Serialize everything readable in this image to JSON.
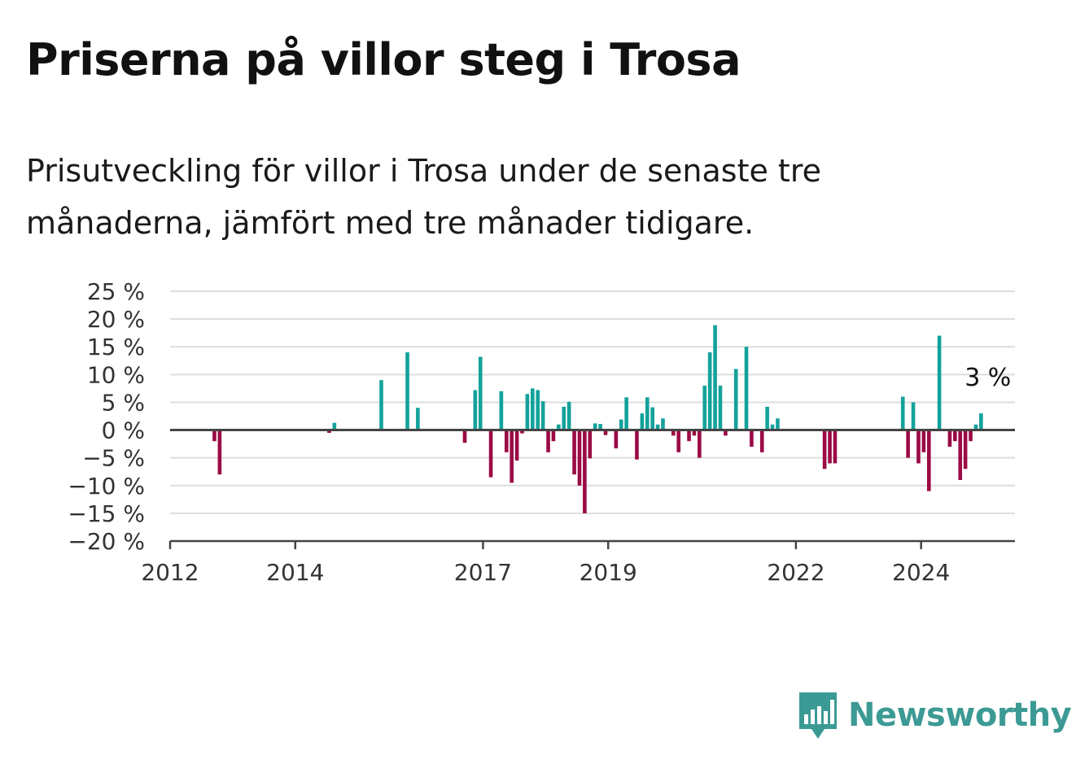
{
  "header": {
    "title": "Priserna på villor steg i Trosa",
    "subtitle": "Prisutveckling för villor i Trosa under de senaste tre månaderna, jämfört med tre månader tidigare."
  },
  "brand": {
    "name": "Newsworthy",
    "color": "#3c9a94",
    "icon": "bar-chart-speech-bubble-icon"
  },
  "chart_data": {
    "type": "bar",
    "title": "",
    "xlabel": "",
    "ylabel": "",
    "ylim": [
      -20,
      25
    ],
    "y_ticks": [
      25,
      20,
      15,
      10,
      5,
      0,
      -5,
      -10,
      -15,
      -20
    ],
    "y_tick_labels": [
      "25 %",
      "20 %",
      "15 %",
      "10 %",
      "5 %",
      "0 %",
      "−5 %",
      "−10 %",
      "−15 %",
      "−20 %"
    ],
    "x_range": [
      "2012-01",
      "2025-07"
    ],
    "x_ticks": [
      "2012-01",
      "2014-01",
      "2017-01",
      "2019-01",
      "2022-01",
      "2024-01"
    ],
    "x_tick_labels": [
      "2012",
      "2014",
      "2017",
      "2019",
      "2022",
      "2024"
    ],
    "grid": true,
    "colors": {
      "positive": "#13a29b",
      "negative": "#9b0a45",
      "zero_line": "#444444",
      "grid": "#dddddd"
    },
    "annotation": {
      "text": "3 %",
      "x": "2025-01",
      "y": 3
    },
    "series": [
      {
        "x": [
          "2012-09",
          "2012-10",
          "2014-07",
          "2014-08",
          "2015-05",
          "2015-10",
          "2015-12",
          "2016-09",
          "2016-11",
          "2016-12",
          "2017-02",
          "2017-04",
          "2017-05",
          "2017-06",
          "2017-07",
          "2017-08",
          "2017-09",
          "2017-10",
          "2017-11",
          "2017-12",
          "2018-01",
          "2018-02",
          "2018-03",
          "2018-04",
          "2018-05",
          "2018-06",
          "2018-07",
          "2018-08",
          "2018-09",
          "2018-10",
          "2018-11",
          "2018-12",
          "2019-02",
          "2019-03",
          "2019-04",
          "2019-06",
          "2019-07",
          "2019-08",
          "2019-09",
          "2019-10",
          "2019-11",
          "2020-01",
          "2020-02",
          "2020-04",
          "2020-05",
          "2020-06",
          "2020-07",
          "2020-08",
          "2020-09",
          "2020-10",
          "2020-11",
          "2021-01",
          "2021-03",
          "2021-04",
          "2021-06",
          "2021-07",
          "2021-08",
          "2021-09",
          "2021-10",
          "2022-06",
          "2022-07",
          "2022-08",
          "2023-09",
          "2023-10",
          "2023-11",
          "2023-12",
          "2024-01",
          "2024-02",
          "2024-04",
          "2024-06",
          "2024-07",
          "2024-08",
          "2024-09",
          "2024-10",
          "2024-11",
          "2024-12"
        ],
        "values": [
          -2,
          -8,
          -0.5,
          1.3,
          9,
          14,
          4,
          -2.3,
          7.2,
          13.2,
          -8.5,
          7,
          -4,
          -9.5,
          -5.5,
          -0.6,
          6.5,
          7.5,
          7.2,
          5.2,
          -4,
          -2,
          1,
          4.2,
          5.1,
          -8,
          -10,
          -15,
          -5.1,
          1.2,
          1.1,
          -0.9,
          -3.3,
          1.9,
          5.9,
          -5.3,
          3,
          5.9,
          4.1,
          1,
          2.1,
          -1,
          -4,
          -2,
          -1,
          -5,
          8,
          14,
          18.9,
          8,
          -1,
          11,
          15,
          -3,
          -4,
          4.2,
          1,
          2.1,
          0,
          -7,
          -6,
          -6,
          6,
          -5,
          5,
          -6,
          -4,
          -11,
          17,
          -3,
          -2,
          -9,
          -7,
          -2,
          1,
          3
        ]
      }
    ]
  }
}
